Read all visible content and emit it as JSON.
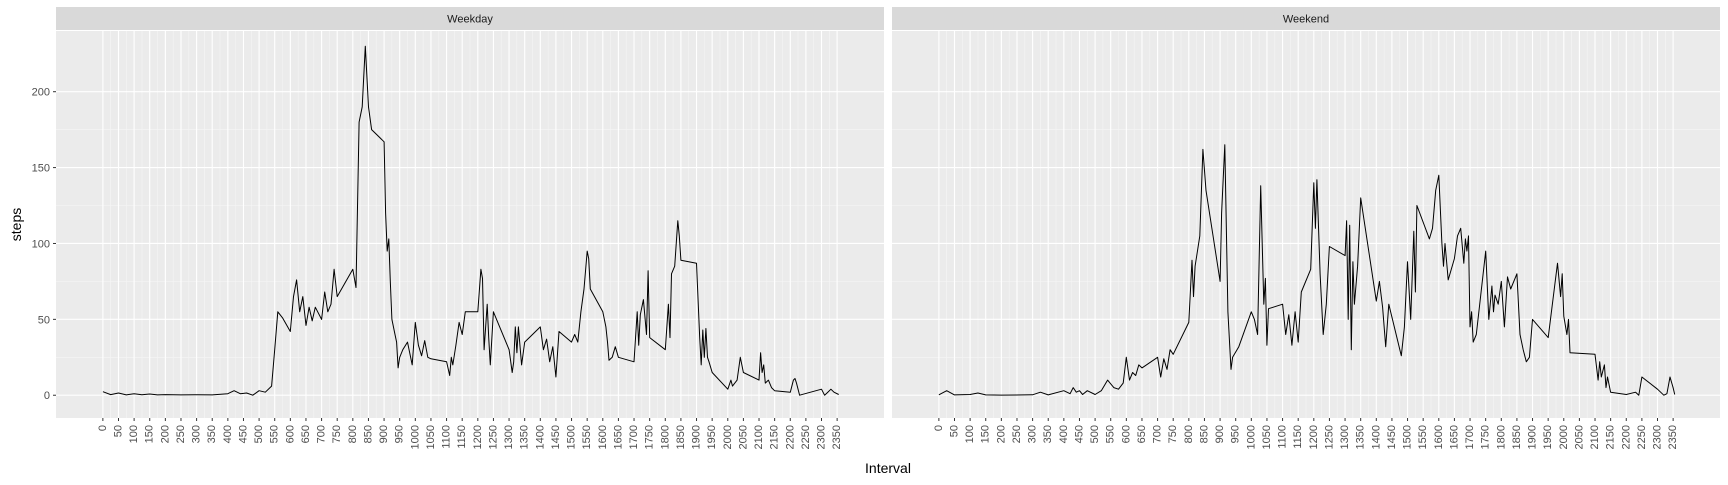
{
  "chart_data": {
    "type": "line",
    "facet_by": "day type",
    "xlabel": "Interval",
    "ylabel": "steps",
    "xlim": [
      -150,
      2500
    ],
    "ylim": [
      -15,
      240
    ],
    "x_ticks": [
      0,
      50,
      100,
      150,
      200,
      250,
      300,
      350,
      400,
      450,
      500,
      550,
      600,
      650,
      700,
      750,
      800,
      850,
      900,
      950,
      1000,
      1050,
      1100,
      1150,
      1200,
      1250,
      1300,
      1350,
      1400,
      1450,
      1500,
      1550,
      1600,
      1650,
      1700,
      1750,
      1800,
      1850,
      1900,
      1950,
      2000,
      2050,
      2100,
      2150,
      2200,
      2250,
      2300,
      2350
    ],
    "y_ticks": [
      0,
      50,
      100,
      150,
      200
    ],
    "grid": true,
    "line_color": "#000000",
    "panels": [
      {
        "title": "Weekday",
        "points": [
          [
            0,
            2.3
          ],
          [
            25,
            0.4
          ],
          [
            50,
            1.5
          ],
          [
            75,
            0.2
          ],
          [
            100,
            1
          ],
          [
            125,
            0.3
          ],
          [
            150,
            0.8
          ],
          [
            175,
            0.2
          ],
          [
            200,
            0.4
          ],
          [
            250,
            0.2
          ],
          [
            300,
            0.3
          ],
          [
            350,
            0.2
          ],
          [
            400,
            1
          ],
          [
            420,
            3
          ],
          [
            440,
            1
          ],
          [
            460,
            1.5
          ],
          [
            480,
            0
          ],
          [
            500,
            3
          ],
          [
            520,
            2
          ],
          [
            540,
            6
          ],
          [
            550,
            30
          ],
          [
            560,
            55
          ],
          [
            575,
            51
          ],
          [
            600,
            42
          ],
          [
            610,
            65
          ],
          [
            620,
            76
          ],
          [
            630,
            55
          ],
          [
            640,
            65
          ],
          [
            650,
            46
          ],
          [
            660,
            58
          ],
          [
            670,
            49
          ],
          [
            680,
            58
          ],
          [
            700,
            50
          ],
          [
            710,
            68
          ],
          [
            720,
            55
          ],
          [
            730,
            60
          ],
          [
            740,
            83
          ],
          [
            750,
            65
          ],
          [
            800,
            83
          ],
          [
            810,
            71
          ],
          [
            820,
            180
          ],
          [
            830,
            190
          ],
          [
            840,
            230
          ],
          [
            850,
            190
          ],
          [
            860,
            175
          ],
          [
            900,
            167
          ],
          [
            905,
            120
          ],
          [
            910,
            95
          ],
          [
            915,
            103
          ],
          [
            920,
            75
          ],
          [
            925,
            50
          ],
          [
            935,
            40
          ],
          [
            940,
            35
          ],
          [
            945,
            18
          ],
          [
            950,
            25
          ],
          [
            960,
            30
          ],
          [
            975,
            35
          ],
          [
            990,
            20
          ],
          [
            1000,
            48
          ],
          [
            1010,
            33
          ],
          [
            1020,
            26
          ],
          [
            1030,
            36
          ],
          [
            1040,
            25
          ],
          [
            1050,
            24
          ],
          [
            1100,
            22
          ],
          [
            1110,
            13
          ],
          [
            1115,
            25
          ],
          [
            1120,
            20
          ],
          [
            1130,
            33
          ],
          [
            1140,
            48
          ],
          [
            1150,
            40
          ],
          [
            1160,
            55
          ],
          [
            1200,
            55
          ],
          [
            1210,
            83
          ],
          [
            1215,
            77
          ],
          [
            1220,
            30
          ],
          [
            1230,
            60
          ],
          [
            1235,
            38
          ],
          [
            1240,
            20
          ],
          [
            1250,
            55
          ],
          [
            1300,
            30
          ],
          [
            1310,
            15
          ],
          [
            1315,
            22
          ],
          [
            1320,
            45
          ],
          [
            1325,
            28
          ],
          [
            1330,
            45
          ],
          [
            1340,
            20
          ],
          [
            1350,
            35
          ],
          [
            1400,
            45
          ],
          [
            1410,
            30
          ],
          [
            1420,
            37
          ],
          [
            1430,
            22
          ],
          [
            1440,
            32
          ],
          [
            1450,
            12
          ],
          [
            1460,
            42
          ],
          [
            1500,
            35
          ],
          [
            1510,
            40
          ],
          [
            1520,
            35
          ],
          [
            1530,
            55
          ],
          [
            1540,
            70
          ],
          [
            1550,
            95
          ],
          [
            1555,
            90
          ],
          [
            1560,
            70
          ],
          [
            1600,
            55
          ],
          [
            1610,
            45
          ],
          [
            1615,
            35
          ],
          [
            1620,
            23
          ],
          [
            1630,
            25
          ],
          [
            1640,
            32
          ],
          [
            1650,
            25
          ],
          [
            1700,
            22
          ],
          [
            1710,
            55
          ],
          [
            1715,
            33
          ],
          [
            1720,
            53
          ],
          [
            1730,
            63
          ],
          [
            1740,
            40
          ],
          [
            1745,
            82
          ],
          [
            1750,
            38
          ],
          [
            1800,
            30
          ],
          [
            1810,
            60
          ],
          [
            1815,
            38
          ],
          [
            1820,
            80
          ],
          [
            1830,
            85
          ],
          [
            1840,
            115
          ],
          [
            1845,
            105
          ],
          [
            1850,
            89
          ],
          [
            1900,
            87
          ],
          [
            1910,
            38
          ],
          [
            1915,
            20
          ],
          [
            1920,
            43
          ],
          [
            1925,
            25
          ],
          [
            1930,
            44
          ],
          [
            1935,
            25
          ],
          [
            1940,
            22
          ],
          [
            1950,
            15
          ],
          [
            2000,
            4
          ],
          [
            2010,
            10
          ],
          [
            2015,
            6
          ],
          [
            2030,
            10
          ],
          [
            2040,
            25
          ],
          [
            2050,
            15
          ],
          [
            2100,
            10
          ],
          [
            2105,
            28
          ],
          [
            2110,
            15
          ],
          [
            2115,
            20
          ],
          [
            2120,
            8
          ],
          [
            2130,
            10
          ],
          [
            2140,
            5
          ],
          [
            2150,
            3
          ],
          [
            2200,
            2
          ],
          [
            2210,
            10
          ],
          [
            2215,
            11
          ],
          [
            2220,
            8
          ],
          [
            2230,
            0
          ],
          [
            2300,
            4
          ],
          [
            2310,
            0
          ],
          [
            2320,
            2
          ],
          [
            2330,
            4
          ],
          [
            2340,
            2
          ],
          [
            2355,
            0.5
          ]
        ]
      },
      {
        "title": "Weekend",
        "points": [
          [
            0,
            0.3
          ],
          [
            25,
            3
          ],
          [
            50,
            0.2
          ],
          [
            100,
            0.5
          ],
          [
            125,
            1.5
          ],
          [
            150,
            0.2
          ],
          [
            200,
            0.1
          ],
          [
            300,
            0.3
          ],
          [
            325,
            2
          ],
          [
            350,
            0.2
          ],
          [
            400,
            3
          ],
          [
            420,
            1
          ],
          [
            430,
            5
          ],
          [
            440,
            2
          ],
          [
            450,
            3
          ],
          [
            460,
            0.5
          ],
          [
            475,
            3
          ],
          [
            500,
            0.5
          ],
          [
            520,
            3
          ],
          [
            540,
            10
          ],
          [
            560,
            5
          ],
          [
            575,
            4
          ],
          [
            590,
            8
          ],
          [
            600,
            25
          ],
          [
            610,
            10
          ],
          [
            620,
            15
          ],
          [
            630,
            13
          ],
          [
            640,
            20
          ],
          [
            650,
            18
          ],
          [
            700,
            25
          ],
          [
            710,
            12
          ],
          [
            720,
            24
          ],
          [
            730,
            17
          ],
          [
            740,
            30
          ],
          [
            750,
            27
          ],
          [
            800,
            48
          ],
          [
            810,
            89
          ],
          [
            815,
            65
          ],
          [
            820,
            85
          ],
          [
            835,
            105
          ],
          [
            845,
            162
          ],
          [
            855,
            135
          ],
          [
            900,
            75
          ],
          [
            905,
            120
          ],
          [
            915,
            165
          ],
          [
            925,
            55
          ],
          [
            935,
            17
          ],
          [
            940,
            25
          ],
          [
            960,
            32
          ],
          [
            1000,
            55
          ],
          [
            1010,
            50
          ],
          [
            1020,
            40
          ],
          [
            1030,
            138
          ],
          [
            1040,
            60
          ],
          [
            1045,
            77
          ],
          [
            1050,
            33
          ],
          [
            1055,
            57
          ],
          [
            1100,
            60
          ],
          [
            1110,
            40
          ],
          [
            1120,
            53
          ],
          [
            1130,
            33
          ],
          [
            1140,
            55
          ],
          [
            1150,
            35
          ],
          [
            1160,
            68
          ],
          [
            1190,
            83
          ],
          [
            1200,
            140
          ],
          [
            1205,
            110
          ],
          [
            1210,
            142
          ],
          [
            1220,
            80
          ],
          [
            1230,
            40
          ],
          [
            1240,
            60
          ],
          [
            1250,
            98
          ],
          [
            1300,
            92
          ],
          [
            1305,
            115
          ],
          [
            1310,
            50
          ],
          [
            1315,
            112
          ],
          [
            1320,
            30
          ],
          [
            1325,
            88
          ],
          [
            1330,
            60
          ],
          [
            1340,
            85
          ],
          [
            1350,
            130
          ],
          [
            1400,
            62
          ],
          [
            1410,
            75
          ],
          [
            1420,
            58
          ],
          [
            1430,
            32
          ],
          [
            1440,
            60
          ],
          [
            1480,
            26
          ],
          [
            1490,
            45
          ],
          [
            1500,
            88
          ],
          [
            1510,
            50
          ],
          [
            1520,
            108
          ],
          [
            1525,
            68
          ],
          [
            1530,
            125
          ],
          [
            1570,
            103
          ],
          [
            1580,
            110
          ],
          [
            1590,
            135
          ],
          [
            1600,
            145
          ],
          [
            1610,
            100
          ],
          [
            1615,
            85
          ],
          [
            1620,
            100
          ],
          [
            1630,
            76
          ],
          [
            1650,
            90
          ],
          [
            1660,
            105
          ],
          [
            1670,
            110
          ],
          [
            1680,
            87
          ],
          [
            1685,
            103
          ],
          [
            1690,
            95
          ],
          [
            1695,
            105
          ],
          [
            1700,
            45
          ],
          [
            1705,
            55
          ],
          [
            1710,
            35
          ],
          [
            1720,
            40
          ],
          [
            1750,
            95
          ],
          [
            1760,
            50
          ],
          [
            1770,
            72
          ],
          [
            1775,
            55
          ],
          [
            1780,
            66
          ],
          [
            1790,
            60
          ],
          [
            1800,
            75
          ],
          [
            1810,
            45
          ],
          [
            1820,
            78
          ],
          [
            1830,
            70
          ],
          [
            1850,
            80
          ],
          [
            1860,
            40
          ],
          [
            1870,
            30
          ],
          [
            1880,
            22
          ],
          [
            1890,
            25
          ],
          [
            1900,
            50
          ],
          [
            1950,
            38
          ],
          [
            1980,
            87
          ],
          [
            1990,
            65
          ],
          [
            1995,
            80
          ],
          [
            2000,
            52
          ],
          [
            2010,
            40
          ],
          [
            2015,
            50
          ],
          [
            2020,
            28
          ],
          [
            2100,
            27
          ],
          [
            2110,
            10
          ],
          [
            2115,
            22
          ],
          [
            2120,
            12
          ],
          [
            2130,
            20
          ],
          [
            2135,
            5
          ],
          [
            2140,
            12
          ],
          [
            2150,
            2
          ],
          [
            2200,
            0.5
          ],
          [
            2230,
            2
          ],
          [
            2240,
            0
          ],
          [
            2250,
            12
          ],
          [
            2300,
            4
          ],
          [
            2320,
            0
          ],
          [
            2330,
            1
          ],
          [
            2340,
            12
          ],
          [
            2350,
            5
          ],
          [
            2355,
            0.5
          ]
        ]
      }
    ]
  }
}
